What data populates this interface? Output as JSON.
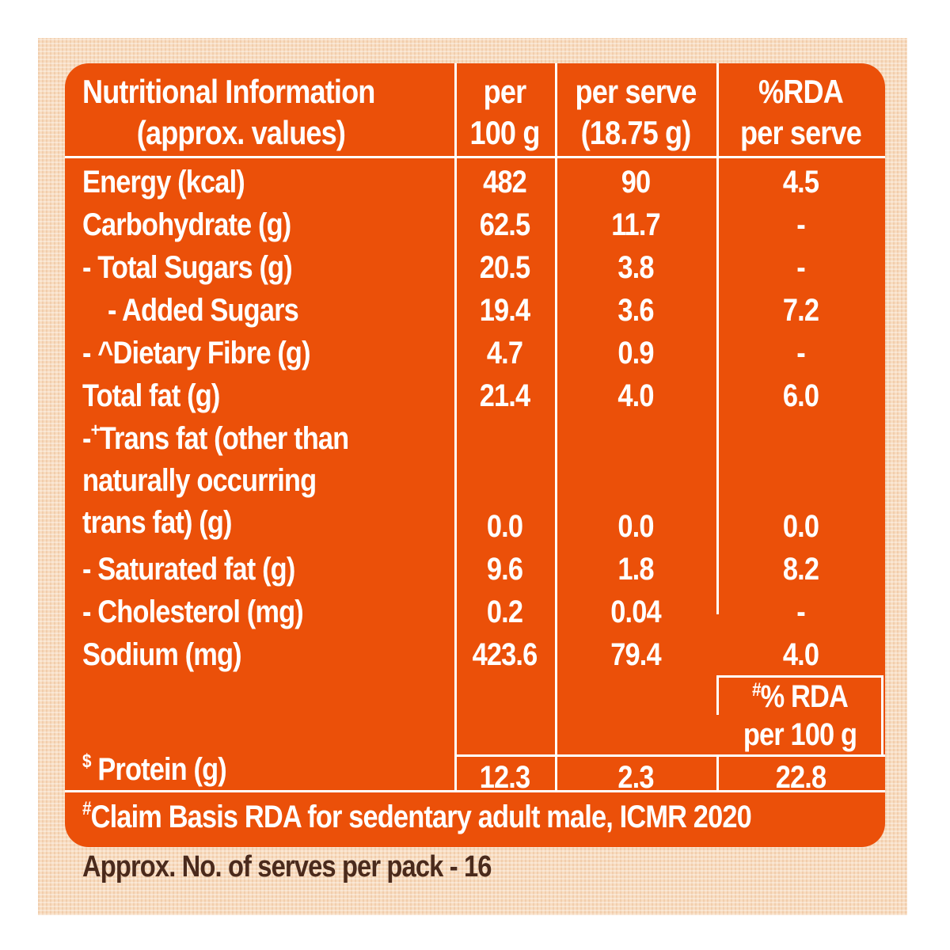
{
  "header": {
    "col0_line1": "Nutritional Information",
    "col0_line2": "(approx. values)",
    "col1_line1": "per",
    "col1_line2": "100 g",
    "col2_line1": "per serve",
    "col2_line2": "(18.75 g)",
    "col3_line1": "%RDA",
    "col3_line2": "per serve"
  },
  "rows": [
    {
      "label": "Energy (kcal)",
      "per100": "482",
      "perServe": "90",
      "rda": "4.5"
    },
    {
      "label": "Carbohydrate (g)",
      "per100": "62.5",
      "perServe": "11.7",
      "rda": "-"
    },
    {
      "label": "- Total Sugars (g)",
      "per100": "20.5",
      "perServe": "3.8",
      "rda": "-"
    },
    {
      "label": "- Added Sugars",
      "per100": "19.4",
      "perServe": "3.6",
      "rda": "7.2"
    },
    {
      "label": "- ^Dietary Fibre (g)",
      "per100": "4.7",
      "perServe": "0.9",
      "rda": "-"
    },
    {
      "label": "Total fat (g)",
      "per100": "21.4",
      "perServe": "4.0",
      "rda": "6.0"
    },
    {
      "label_sup": "+",
      "label_line1": "Trans fat (other than",
      "label_line2": "naturally occurring",
      "label_line3": "trans fat) (g)",
      "per100": "0.0",
      "perServe": "0.0",
      "rda": "0.0"
    },
    {
      "label": "- Saturated fat (g)",
      "per100": "9.6",
      "perServe": "1.8",
      "rda": "8.2"
    },
    {
      "label": "- Cholesterol (mg)",
      "per100": "0.2",
      "perServe": "0.04",
      "rda": "-"
    },
    {
      "label": "Sodium (mg)",
      "per100": "423.6",
      "perServe": "79.4",
      "rda": "4.0"
    }
  ],
  "rda100_header": {
    "sup": "#",
    "line1": "% RDA",
    "line2": "per 100 g"
  },
  "protein": {
    "sup": "$",
    "label": "Protein (g)",
    "per100": "12.3",
    "perServe": "2.3",
    "rda100": "22.8"
  },
  "claim": {
    "sup": "#",
    "text": "Claim Basis RDA for sedentary adult male, ICMR 2020"
  },
  "footer": "Approx. No. of serves per pack - 16",
  "colors": {
    "panel": "#eb5009",
    "background": "#f8dcc0",
    "footer_text": "#4a2a1c"
  }
}
